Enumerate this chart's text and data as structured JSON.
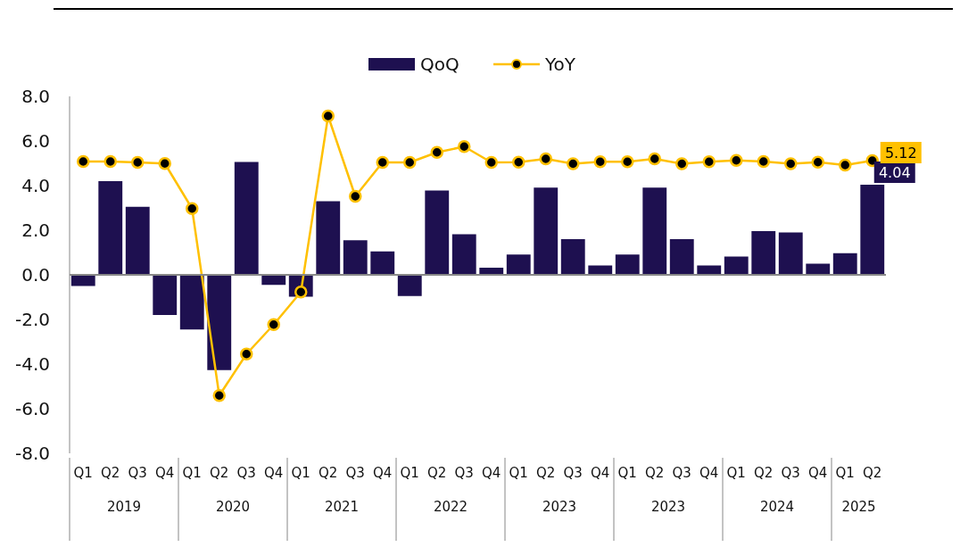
{
  "chart_data": {
    "type": "bar",
    "categories": [
      "Q1",
      "Q2",
      "Q3",
      "Q4",
      "Q1",
      "Q2",
      "Q3",
      "Q4",
      "Q1",
      "Q2",
      "Q3",
      "Q4",
      "Q1",
      "Q2",
      "Q3",
      "Q4",
      "Q1",
      "Q2",
      "Q3",
      "Q4",
      "Q1",
      "Q2",
      "Q3",
      "Q4",
      "Q1",
      "Q2",
      "Q3",
      "Q4",
      "Q1",
      "Q2"
    ],
    "annotations": [
      "2019",
      "2020",
      "2021",
      "2022",
      "2023",
      "2023",
      "2024",
      "2025"
    ],
    "series": [
      {
        "name": "QoQ",
        "color": "#1e1050",
        "values": [
          -0.5,
          4.2,
          3.05,
          -1.8,
          -2.45,
          -4.27,
          5.06,
          -0.45,
          -0.98,
          3.3,
          1.55,
          1.05,
          -0.95,
          3.78,
          1.82,
          0.32,
          0.91,
          3.91,
          1.6,
          0.42,
          0.91,
          3.91,
          1.6,
          0.42,
          0.82,
          1.96,
          1.9,
          0.5,
          0.97,
          4.04
        ],
        "value_labels": [
          null,
          null,
          null,
          null,
          null,
          null,
          null,
          null,
          null,
          null,
          null,
          null,
          null,
          null,
          null,
          null,
          null,
          null,
          null,
          null,
          null,
          null,
          null,
          null,
          null,
          null,
          null,
          null,
          null,
          "4.04"
        ]
      },
      {
        "name": "YoY",
        "type": "line",
        "color": "#ffc000",
        "marker": "circle",
        "values": [
          5.08,
          5.08,
          5.04,
          4.99,
          2.97,
          -5.41,
          -3.55,
          -2.23,
          -0.77,
          7.12,
          3.52,
          5.04,
          5.04,
          5.49,
          5.75,
          5.04,
          5.05,
          5.2,
          4.98,
          5.07,
          5.07,
          5.2,
          4.98,
          5.07,
          5.13,
          5.08,
          4.98,
          5.05,
          4.92,
          5.12
        ],
        "value_labels": [
          null,
          null,
          null,
          null,
          null,
          null,
          null,
          null,
          null,
          null,
          null,
          null,
          null,
          null,
          null,
          null,
          null,
          null,
          null,
          null,
          null,
          null,
          null,
          null,
          null,
          null,
          null,
          null,
          null,
          "5.12"
        ]
      }
    ],
    "ylim": [
      -8,
      8
    ],
    "yticks": [
      {
        "value": -8,
        "label": "-8.0"
      },
      {
        "value": -6,
        "label": "-6.0"
      },
      {
        "value": -4,
        "label": "-4.0"
      },
      {
        "value": -2,
        "label": "-2.0"
      },
      {
        "value": 0,
        "label": "0.0"
      },
      {
        "value": 2,
        "label": "2.0"
      },
      {
        "value": 4,
        "label": "4.0"
      },
      {
        "value": 6,
        "label": "6.0"
      },
      {
        "value": 8,
        "label": "8.0"
      }
    ],
    "legend": "top"
  }
}
